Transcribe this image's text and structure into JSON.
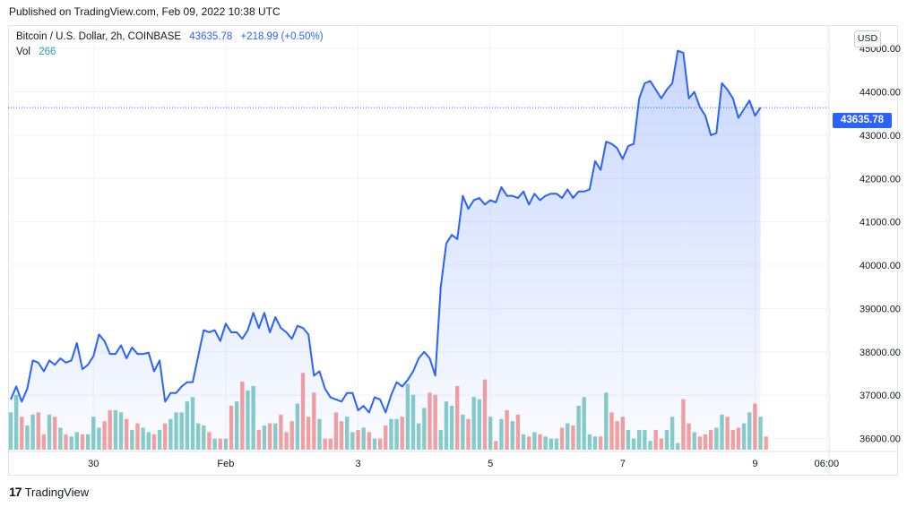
{
  "header": {
    "published": "Published on TradingView.com, Feb 09, 2022 10:38 UTC"
  },
  "legend": {
    "symbol": "Bitcoin / U.S. Dollar, 2h, COINBASE",
    "last": "43635.78",
    "change": "+218.99 (+0.50%)",
    "vol_label": "Vol",
    "vol_value": "266"
  },
  "currency_button": "USD",
  "last_price_label": "43635.78",
  "footer": {
    "brand_logo": "17",
    "brand_name": "TradingView"
  },
  "colors": {
    "line": "#2962ff",
    "up_volume": "#26a69a",
    "down_volume": "#ef5350",
    "grid": "#f0f3fa"
  },
  "chart_data": {
    "type": "line",
    "ylim": [
      35700,
      45500
    ],
    "xlim": [
      0,
      139
    ],
    "x_tick_labels": [
      {
        "x": 15,
        "label": "30"
      },
      {
        "x": 39,
        "label": "Feb"
      },
      {
        "x": 63,
        "label": "3"
      },
      {
        "x": 87,
        "label": "5"
      },
      {
        "x": 111,
        "label": "7"
      },
      {
        "x": 135,
        "label": "9"
      },
      {
        "x": 148,
        "label": "06:00"
      }
    ],
    "y_ticks": [
      36000,
      37000,
      38000,
      39000,
      40000,
      41000,
      42000,
      43000,
      44000,
      45000
    ],
    "y_tick_labels": [
      "36000.00",
      "37000.00",
      "38000.00",
      "39000.00",
      "40000.00",
      "41000.00",
      "42000.00",
      "43000.00",
      "44000.00",
      "45000.00"
    ],
    "last_price": 43635.78,
    "series": [
      {
        "kind": "price",
        "values": [
          36900,
          37200,
          36850,
          37150,
          37800,
          37750,
          37550,
          37800,
          37700,
          37850,
          37750,
          37800,
          38200,
          37600,
          37700,
          37900,
          38400,
          38250,
          37950,
          37950,
          38150,
          37850,
          38100,
          37950,
          37950,
          37980,
          37550,
          37800,
          36850,
          37050,
          37050,
          37200,
          37300,
          37300,
          37900,
          38500,
          38450,
          38500,
          38250,
          38650,
          38450,
          38450,
          38300,
          38500,
          38900,
          38550,
          38900,
          38450,
          38800,
          38550,
          38450,
          38300,
          38600,
          38550,
          38400,
          37450,
          37550,
          37150,
          36950,
          36900,
          36850,
          37050,
          37050,
          36650,
          36750,
          36600,
          36950,
          36900,
          36600,
          37000,
          37300,
          37200,
          37350,
          37550,
          37850,
          38000,
          37850,
          37450,
          39500,
          40500,
          40700,
          40600,
          41600,
          41300,
          41500,
          41550,
          41400,
          41500,
          41450,
          41800,
          41600,
          41600,
          41550,
          41700,
          41400,
          41650,
          41500,
          41600,
          41650,
          41650,
          41550,
          41750,
          41550,
          41700,
          41700,
          41750,
          42400,
          42200,
          42850,
          42800,
          42700,
          42450,
          42750,
          42800,
          43850,
          44200,
          44250,
          44050,
          43850,
          44050,
          44200,
          44950,
          44900,
          43850,
          44000,
          43650,
          43450,
          43000,
          43050,
          44200,
          44050,
          43850,
          43400,
          43600,
          43800,
          43450,
          43636
        ]
      },
      {
        "kind": "volume",
        "values": [
          17,
          25,
          15,
          11,
          16,
          17,
          7,
          16,
          15,
          10,
          7,
          6,
          8,
          7,
          7,
          15,
          10,
          13,
          18,
          18,
          17,
          14,
          9,
          12,
          10,
          8,
          7,
          9,
          12,
          14,
          17,
          17,
          22,
          24,
          12,
          11,
          8,
          5,
          5,
          5,
          20,
          22,
          31,
          27,
          29,
          9,
          11,
          12,
          12,
          16,
          8,
          13,
          21,
          35,
          15,
          26,
          14,
          5,
          5,
          17,
          13,
          15,
          8,
          9,
          10,
          8,
          5,
          5,
          11,
          14,
          14,
          15,
          30,
          25,
          12,
          19,
          26,
          25,
          9,
          22,
          20,
          29,
          16,
          14,
          24,
          23,
          32,
          15,
          4,
          14,
          18,
          13,
          16,
          7,
          6,
          8,
          7,
          6,
          5,
          5,
          10,
          12,
          11,
          20,
          24,
          7,
          6,
          6,
          26,
          17,
          13,
          15,
          9,
          5,
          9,
          9,
          4,
          9,
          5,
          9,
          15,
          3,
          23,
          12,
          8,
          6,
          7,
          9,
          10,
          16,
          15,
          9,
          10,
          12,
          17,
          21,
          15,
          6
        ]
      }
    ]
  }
}
